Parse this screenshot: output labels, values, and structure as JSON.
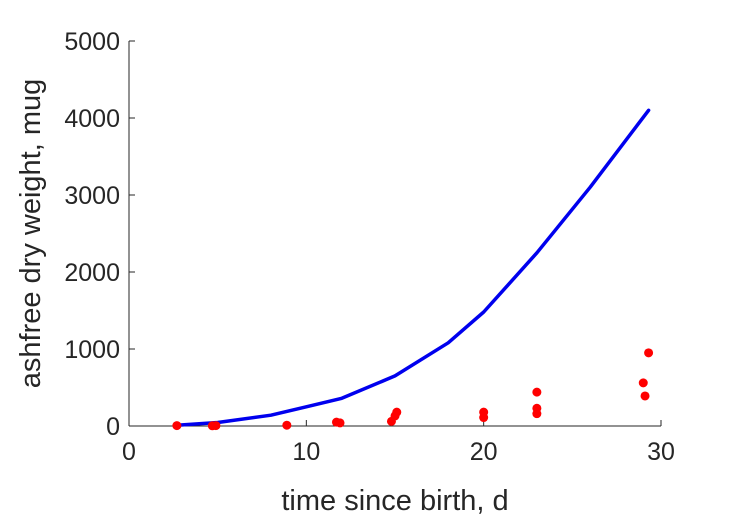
{
  "chart_data": {
    "type": "scatter",
    "xlabel": "time since birth, d",
    "ylabel": "ashfree dry weight, mug",
    "xlim": [
      0,
      30
    ],
    "ylim": [
      0,
      5000
    ],
    "xticks": [
      0,
      10,
      20,
      30
    ],
    "yticks": [
      0,
      1000,
      2000,
      3000,
      4000,
      5000
    ],
    "grid": false,
    "series": [
      {
        "kind": "scatter",
        "color": "#ff0000",
        "points": [
          {
            "x": 2.7,
            "y": 5
          },
          {
            "x": 4.7,
            "y": 3
          },
          {
            "x": 4.9,
            "y": 5
          },
          {
            "x": 8.9,
            "y": 10
          },
          {
            "x": 11.7,
            "y": 50
          },
          {
            "x": 11.9,
            "y": 40
          },
          {
            "x": 14.8,
            "y": 60
          },
          {
            "x": 15.0,
            "y": 130
          },
          {
            "x": 15.1,
            "y": 180
          },
          {
            "x": 20.0,
            "y": 110
          },
          {
            "x": 20.0,
            "y": 180
          },
          {
            "x": 23.0,
            "y": 160
          },
          {
            "x": 23.0,
            "y": 230
          },
          {
            "x": 23.0,
            "y": 440
          },
          {
            "x": 29.0,
            "y": 560
          },
          {
            "x": 29.1,
            "y": 390
          },
          {
            "x": 29.3,
            "y": 950
          }
        ]
      },
      {
        "kind": "line",
        "color": "#0000ee",
        "points": [
          {
            "x": 2.7,
            "y": 10
          },
          {
            "x": 5,
            "y": 45
          },
          {
            "x": 8,
            "y": 140
          },
          {
            "x": 10,
            "y": 250
          },
          {
            "x": 12,
            "y": 360
          },
          {
            "x": 15,
            "y": 650
          },
          {
            "x": 18,
            "y": 1080
          },
          {
            "x": 20,
            "y": 1480
          },
          {
            "x": 23,
            "y": 2250
          },
          {
            "x": 26,
            "y": 3100
          },
          {
            "x": 29.3,
            "y": 4100
          }
        ]
      }
    ]
  }
}
